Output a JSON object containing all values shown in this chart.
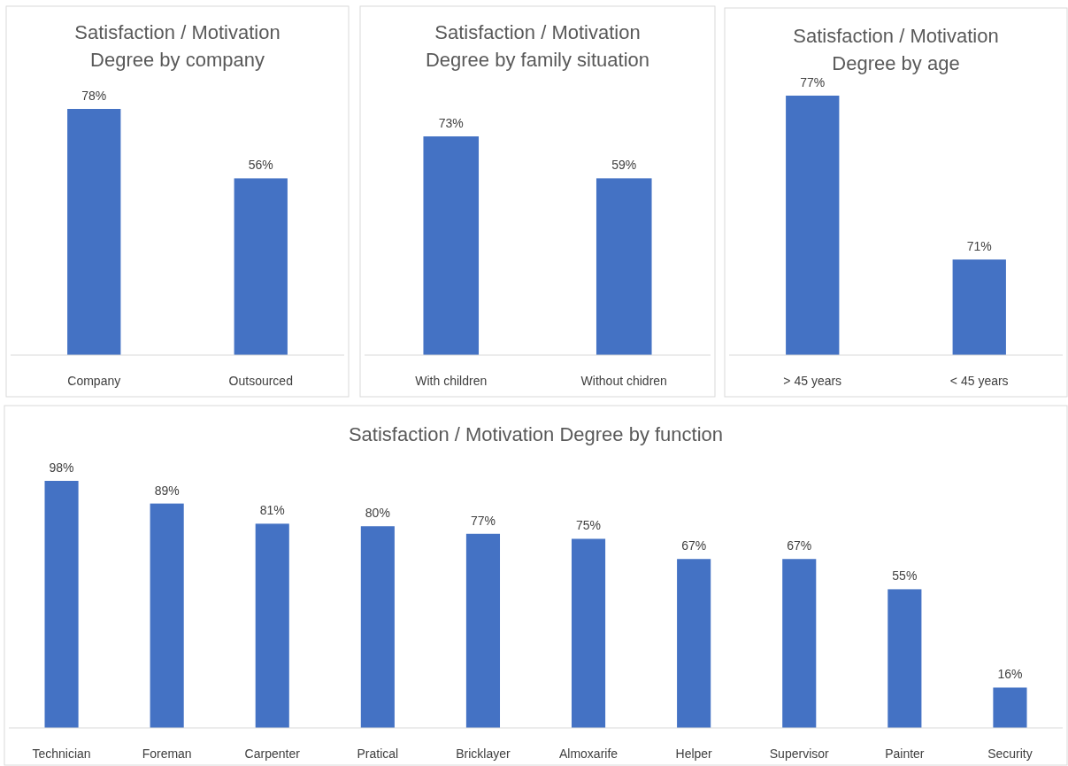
{
  "chart_data": [
    {
      "type": "bar",
      "title": "Satisfaction / Motivation Degree by company",
      "categories": [
        "Company",
        "Outsourced"
      ],
      "values": [
        78,
        56
      ],
      "value_labels": [
        "78%",
        "56%"
      ],
      "color": "#4472c4",
      "ylim": [
        0,
        78
      ]
    },
    {
      "type": "bar",
      "title": "Satisfaction / Motivation Degree by family situation",
      "categories": [
        "With children",
        "Without chidren"
      ],
      "values": [
        73,
        59
      ],
      "value_labels": [
        "73%",
        "59%"
      ],
      "color": "#4472c4",
      "ylim": [
        0,
        73
      ]
    },
    {
      "type": "bar",
      "title": "Satisfaction / Motivation Degree by age",
      "categories": [
        "> 45 years",
        "< 45 years"
      ],
      "values": [
        77,
        71
      ],
      "value_labels": [
        "77%",
        "71%"
      ],
      "color": "#4472c4",
      "ylim": [
        67.5,
        77
      ]
    },
    {
      "type": "bar",
      "title": "Satisfaction / Motivation Degree by function",
      "categories": [
        "Technician",
        "Foreman",
        "Carpenter",
        "Pratical",
        "Bricklayer",
        "Almoxarife",
        "Helper",
        "Supervisor",
        "Painter",
        "Security"
      ],
      "values": [
        98,
        89,
        81,
        80,
        77,
        75,
        67,
        67,
        55,
        16
      ],
      "value_labels": [
        "98%",
        "89%",
        "81%",
        "80%",
        "77%",
        "75%",
        "67%",
        "67%",
        "55%",
        "16%"
      ],
      "color": "#4472c4",
      "ylim": [
        0,
        98
      ]
    }
  ]
}
